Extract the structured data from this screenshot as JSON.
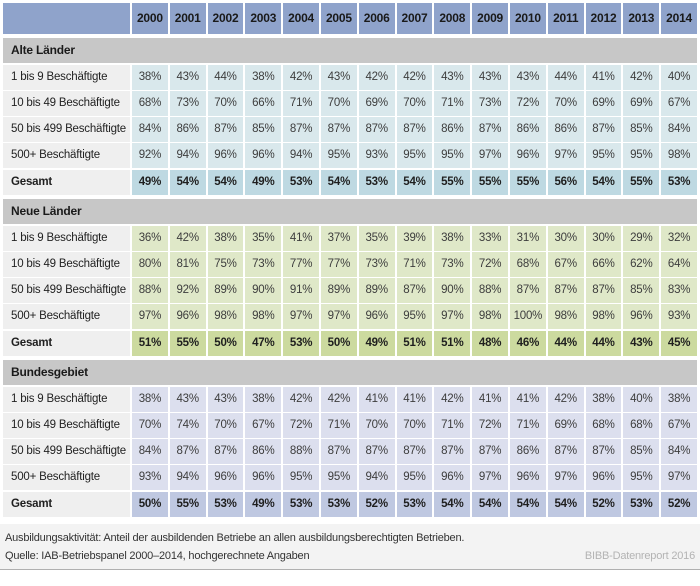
{
  "footer": {
    "note": "Ausbildungsaktivität: Anteil der ausbildenden Betriebe an allen ausbildungsberechtigten Betrieben.",
    "source": "Quelle: IAB-Betriebspanel 2000–2014, hochgerechnete Angaben",
    "credit": "BIBB-Datenreport 2016"
  },
  "colors": {
    "header_bg": "#8fa3cb",
    "section_bar_bg": "#c7c7c7",
    "label_bg": "#efefef",
    "footer_bg": "#f3f3f3"
  },
  "chart_data": {
    "type": "table",
    "title": "Ausbildungsaktivität: Anteil der ausbildenden Betriebe an allen ausbildungsberechtigten Betrieben",
    "x": [
      2000,
      2001,
      2002,
      2003,
      2004,
      2005,
      2006,
      2007,
      2008,
      2009,
      2010,
      2011,
      2012,
      2013,
      2014
    ],
    "unit": "%",
    "groups": [
      {
        "name": "Alte Länder",
        "cell_color": "#d9e8ec",
        "total_color": "#bed9e2",
        "rows": [
          {
            "label": "1 bis 9 Beschäftigte",
            "values": [
              38,
              43,
              44,
              38,
              42,
              43,
              42,
              42,
              43,
              43,
              43,
              44,
              41,
              42,
              40
            ]
          },
          {
            "label": "10 bis 49 Beschäftigte",
            "values": [
              68,
              73,
              70,
              66,
              71,
              70,
              69,
              70,
              71,
              73,
              72,
              70,
              69,
              69,
              67
            ]
          },
          {
            "label": "50 bis 499 Beschäftigte",
            "values": [
              84,
              86,
              87,
              85,
              87,
              87,
              87,
              87,
              86,
              87,
              86,
              86,
              87,
              85,
              84
            ]
          },
          {
            "label": "500+ Beschäftigte",
            "values": [
              92,
              94,
              96,
              96,
              94,
              95,
              93,
              95,
              95,
              97,
              96,
              97,
              95,
              95,
              98
            ]
          }
        ],
        "total": {
          "label": "Gesamt",
          "values": [
            49,
            54,
            54,
            49,
            53,
            54,
            53,
            54,
            55,
            55,
            55,
            56,
            54,
            55,
            53
          ]
        }
      },
      {
        "name": "Neue Länder",
        "cell_color": "#dfe8c8",
        "total_color": "#ccda9f",
        "rows": [
          {
            "label": "1 bis 9 Beschäftigte",
            "values": [
              36,
              42,
              38,
              35,
              41,
              37,
              35,
              39,
              38,
              33,
              31,
              30,
              30,
              29,
              32
            ]
          },
          {
            "label": "10 bis 49 Beschäftigte",
            "values": [
              80,
              81,
              75,
              73,
              77,
              77,
              73,
              71,
              73,
              72,
              68,
              67,
              66,
              62,
              64
            ]
          },
          {
            "label": "50 bis 499 Beschäftigte",
            "values": [
              88,
              92,
              89,
              90,
              91,
              89,
              89,
              87,
              90,
              88,
              87,
              87,
              87,
              85,
              83
            ]
          },
          {
            "label": "500+ Beschäftigte",
            "values": [
              97,
              96,
              98,
              98,
              97,
              97,
              96,
              95,
              97,
              98,
              100,
              98,
              98,
              96,
              93
            ]
          }
        ],
        "total": {
          "label": "Gesamt",
          "values": [
            51,
            55,
            50,
            47,
            53,
            50,
            49,
            51,
            51,
            48,
            46,
            44,
            44,
            43,
            45
          ]
        }
      },
      {
        "name": "Bundesgebiet",
        "cell_color": "#dcdfee",
        "total_color": "#bfc8e1",
        "rows": [
          {
            "label": "1 bis 9 Beschäftigte",
            "values": [
              38,
              43,
              43,
              38,
              42,
              42,
              41,
              41,
              42,
              41,
              41,
              42,
              38,
              40,
              38
            ]
          },
          {
            "label": "10 bis 49 Beschäftigte",
            "values": [
              70,
              74,
              70,
              67,
              72,
              71,
              70,
              70,
              71,
              72,
              71,
              69,
              68,
              68,
              67
            ]
          },
          {
            "label": "50 bis 499 Beschäftigte",
            "values": [
              84,
              87,
              87,
              86,
              88,
              87,
              87,
              87,
              87,
              87,
              86,
              87,
              87,
              85,
              84
            ]
          },
          {
            "label": "500+ Beschäftigte",
            "values": [
              93,
              94,
              96,
              96,
              95,
              95,
              94,
              95,
              96,
              97,
              96,
              97,
              96,
              95,
              97
            ]
          }
        ],
        "total": {
          "label": "Gesamt",
          "values": [
            50,
            55,
            53,
            49,
            53,
            53,
            52,
            53,
            54,
            54,
            54,
            54,
            52,
            53,
            52
          ]
        }
      }
    ]
  }
}
